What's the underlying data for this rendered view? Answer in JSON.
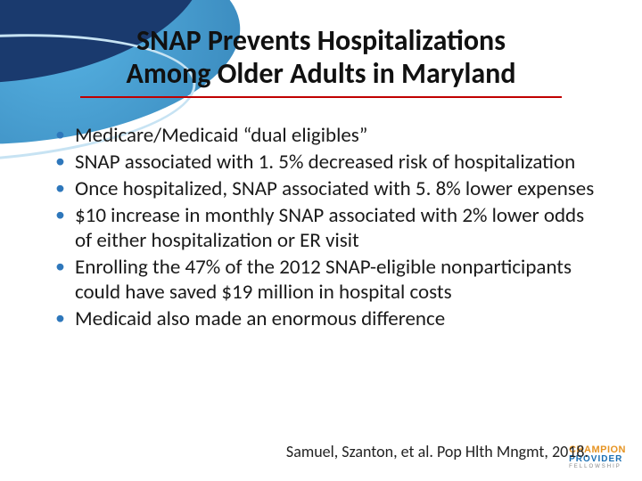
{
  "slide": {
    "title_line1": "SNAP Prevents Hospitalizations",
    "title_line2": "Among Older Adults in Maryland",
    "title_color": "#111111",
    "title_fontsize": 32,
    "underline_color": "#c00000",
    "background_color": "#ffffff",
    "swoosh_colors": {
      "dark": "#1a3a6e",
      "light": "#3aa7e0",
      "outline": "#c7e3f3"
    }
  },
  "bullets": {
    "marker_color": "#2e77bb",
    "text_color": "#1a1a1a",
    "fontsize": 23,
    "items": [
      "Medicare/Medicaid “dual eligibles”",
      "SNAP associated with 1. 5% decreased risk of hospitalization",
      "Once hospitalized, SNAP associated with 5. 8% lower expenses",
      "$10 increase in monthly SNAP associated with 2% lower odds of either hospitalization or ER visit",
      "Enrolling the 47% of the 2012 SNAP-eligible nonparticipants could have saved $19 million in hospital costs",
      "Medicaid also made an enormous difference"
    ]
  },
  "citation": {
    "text": "Samuel, Szanton, et al. Pop Hlth Mngmt, 2018.",
    "fontsize": 18,
    "color": "#222222"
  },
  "logo": {
    "top": "CHAMPION",
    "sub": "PROVIDER",
    "small": "FELLOWSHIP",
    "top_color": "#e69423",
    "sub_color": "#1a6fb3"
  }
}
